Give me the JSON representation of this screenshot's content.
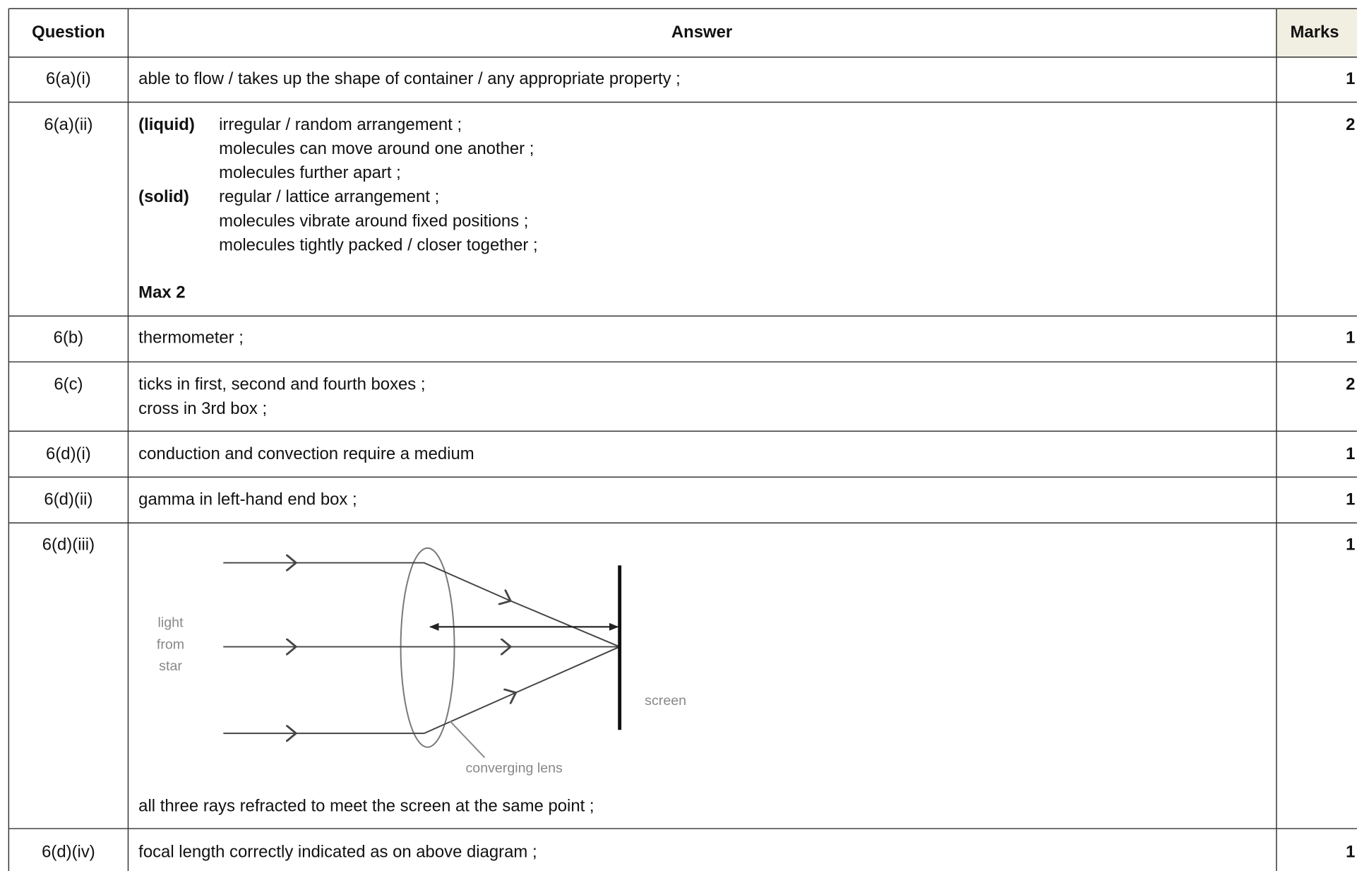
{
  "header": {
    "question": "Question",
    "answer": "Answer",
    "marks": "Marks"
  },
  "rows": [
    {
      "question": "6(a)(i)",
      "answer": [
        "able to flow / takes up the shape of container / any appropriate property ;"
      ],
      "marks": 1
    },
    {
      "question": "6(a)(ii)",
      "groups": [
        {
          "label": "(liquid)",
          "lines": [
            "irregular / random arrangement ;",
            "molecules can move around one another ;",
            "molecules further apart ;"
          ]
        },
        {
          "label": "(solid)",
          "lines": [
            "regular / lattice arrangement ;",
            "molecules vibrate around fixed positions ;",
            "molecules tightly packed / closer together ;"
          ]
        }
      ],
      "note": "Max 2",
      "marks": 2
    },
    {
      "question": "6(b)",
      "answer": [
        "thermometer ;"
      ],
      "marks": 1
    },
    {
      "question": "6(c)",
      "answer": [
        "ticks in first, second and fourth boxes ;",
        "cross in 3rd box ;"
      ],
      "marks": 2
    },
    {
      "question": "6(d)(i)",
      "answer": [
        "conduction and convection require a medium"
      ],
      "marks": 1
    },
    {
      "question": "6(d)(ii)",
      "answer": [
        "gamma in left-hand end box ;"
      ],
      "marks": 1
    },
    {
      "question": "6(d)(iii)",
      "diagram": {
        "source": [
          "light",
          "from",
          "star"
        ],
        "screen": "screen",
        "lens": "converging lens"
      },
      "answer": [
        "all three rays refracted to meet the screen at the same point ;"
      ],
      "marks": 1
    },
    {
      "question": "6(d)(iv)",
      "answer": [
        "focal length correctly indicated as on above diagram ;"
      ],
      "marks": 1
    }
  ]
}
